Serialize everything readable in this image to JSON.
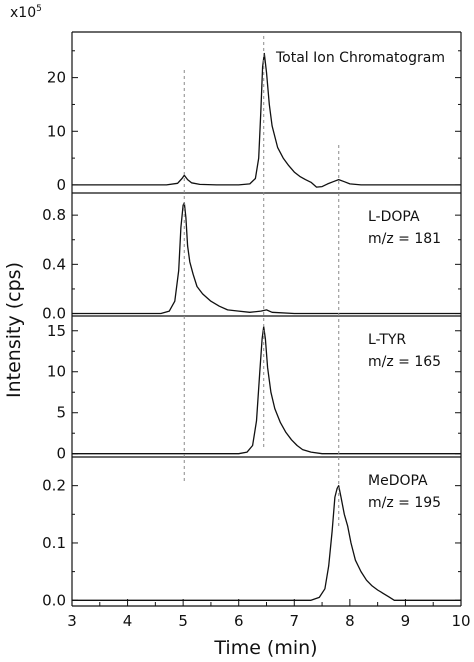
{
  "chart_data": {
    "type": "line",
    "xlabel": "Time (min)",
    "ylabel": "Intensity (cps)",
    "y_multiplier": {
      "base": "x10",
      "exponent": "5"
    },
    "xlim": [
      3,
      10
    ],
    "x_ticks": [
      "3",
      "4",
      "5",
      "6",
      "7",
      "8",
      "9",
      "10"
    ],
    "grid": false,
    "legend": "none",
    "reference_lines_x": [
      5.02,
      6.45,
      7.8
    ],
    "panels": [
      {
        "annotation": [
          "Total Ion Chromatogram"
        ],
        "ylim": [
          -1.5,
          28.5
        ],
        "y_ticks": [
          0,
          10,
          20
        ],
        "y_tick_labels": [
          "0",
          "10",
          "20"
        ],
        "series": {
          "x": [
            3.0,
            4.7,
            4.9,
            4.98,
            5.02,
            5.08,
            5.15,
            5.3,
            5.6,
            6.0,
            6.2,
            6.3,
            6.36,
            6.4,
            6.43,
            6.46,
            6.5,
            6.55,
            6.6,
            6.7,
            6.8,
            6.9,
            7.0,
            7.1,
            7.2,
            7.3,
            7.4,
            7.5,
            7.6,
            7.7,
            7.8,
            7.9,
            8.0,
            8.2,
            10.0
          ],
          "y": [
            0,
            0,
            0.3,
            1.2,
            1.8,
            1.0,
            0.4,
            0.1,
            0,
            0,
            0.2,
            1.2,
            5.0,
            14.0,
            22.0,
            24.5,
            21.0,
            15.0,
            11.0,
            7.0,
            5.0,
            3.6,
            2.4,
            1.6,
            1.0,
            0.5,
            -0.4,
            -0.3,
            0.2,
            0.6,
            1.0,
            0.6,
            0.2,
            0,
            0
          ]
        }
      },
      {
        "annotation": [
          "L-DOPA",
          "m/z = 181"
        ],
        "ylim": [
          -0.02,
          0.98
        ],
        "y_ticks": [
          0.0,
          0.4,
          0.8
        ],
        "y_tick_labels": [
          "0.0",
          "0.4",
          "0.8"
        ],
        "series": {
          "x": [
            3.0,
            4.6,
            4.75,
            4.85,
            4.92,
            4.96,
            5.0,
            5.02,
            5.05,
            5.08,
            5.12,
            5.18,
            5.25,
            5.35,
            5.5,
            5.65,
            5.8,
            6.0,
            6.2,
            6.4,
            6.5,
            6.6,
            7.0,
            10.0
          ],
          "y": [
            0,
            0,
            0.02,
            0.1,
            0.35,
            0.7,
            0.88,
            0.9,
            0.78,
            0.55,
            0.42,
            0.32,
            0.22,
            0.16,
            0.1,
            0.06,
            0.03,
            0.02,
            0.01,
            0.02,
            0.03,
            0.01,
            0,
            0
          ]
        }
      },
      {
        "annotation": [
          "L-TYR",
          "m/z = 165"
        ],
        "ylim": [
          -0.4,
          16.8
        ],
        "y_ticks": [
          0,
          5,
          10,
          15
        ],
        "y_tick_labels": [
          "0",
          "5",
          "10",
          "15"
        ],
        "series": {
          "x": [
            3.0,
            6.0,
            6.15,
            6.25,
            6.32,
            6.38,
            6.42,
            6.45,
            6.48,
            6.52,
            6.58,
            6.65,
            6.75,
            6.85,
            6.95,
            7.05,
            7.15,
            7.3,
            7.5,
            10.0
          ],
          "y": [
            0,
            0,
            0.2,
            1.0,
            4.0,
            10.0,
            14.0,
            15.5,
            14.0,
            10.5,
            7.5,
            5.5,
            3.8,
            2.6,
            1.7,
            1.0,
            0.5,
            0.2,
            0,
            0
          ]
        }
      },
      {
        "annotation": [
          "MeDOPA",
          "m/z = 195"
        ],
        "ylim": [
          -0.01,
          0.25
        ],
        "y_ticks": [
          0.0,
          0.1,
          0.2
        ],
        "y_tick_labels": [
          "0.0",
          "0.1",
          "0.2"
        ],
        "series": {
          "x": [
            3.0,
            7.3,
            7.45,
            7.55,
            7.62,
            7.68,
            7.73,
            7.77,
            7.8,
            7.84,
            7.9,
            7.96,
            8.02,
            8.1,
            8.2,
            8.3,
            8.4,
            8.5,
            8.6,
            8.7,
            8.8,
            10.0
          ],
          "y": [
            0,
            0,
            0.005,
            0.02,
            0.06,
            0.12,
            0.18,
            0.195,
            0.2,
            0.18,
            0.15,
            0.13,
            0.1,
            0.07,
            0.05,
            0.035,
            0.025,
            0.018,
            0.012,
            0.006,
            0,
            0
          ]
        }
      }
    ]
  }
}
